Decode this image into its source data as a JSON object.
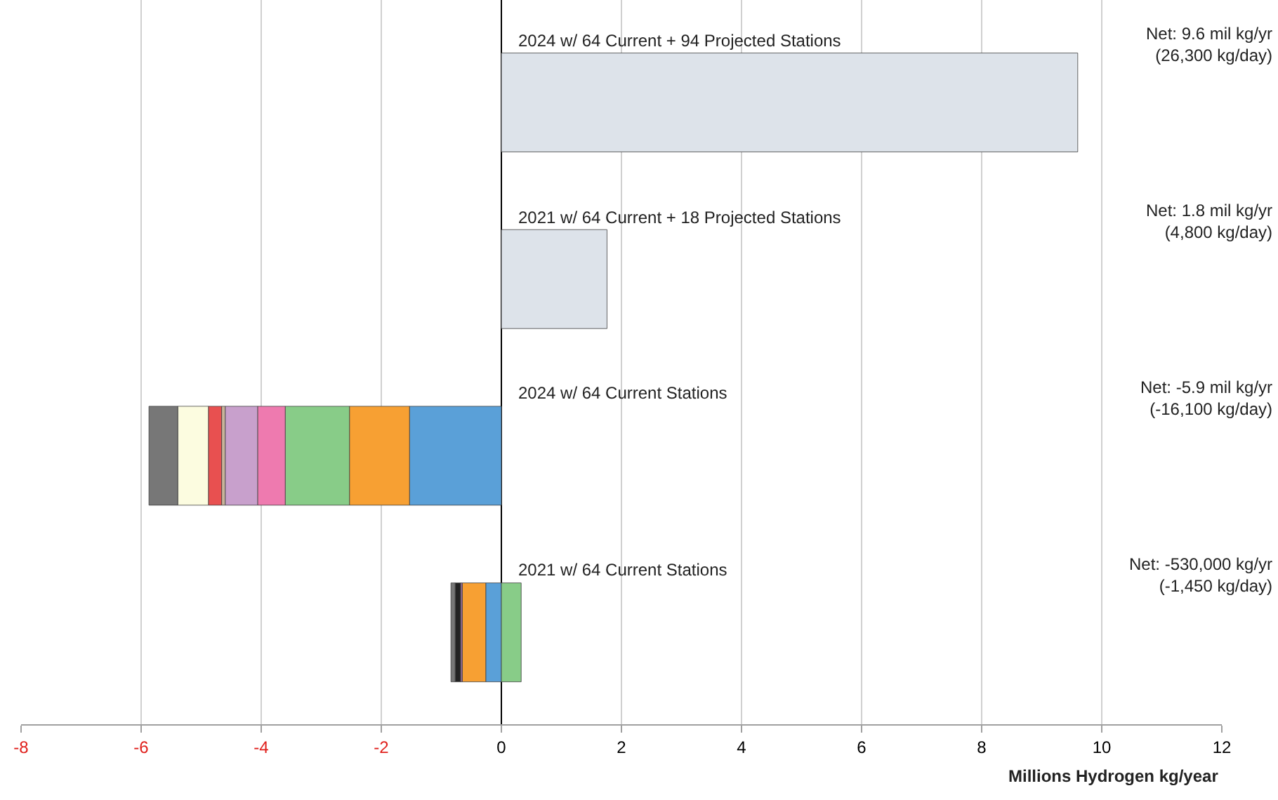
{
  "chart_data": {
    "type": "bar",
    "orientation": "horizontal",
    "stacked": true,
    "categories": [
      "2024 w/ 64 Current + 94 Projected Stations",
      "2021 w/ 64 Current + 18 Projected Stations",
      "2024 w/ 64 Current Stations",
      "2021 w/ 64 Current Stations"
    ],
    "series": [
      {
        "color": "#dde3ea",
        "values": [
          9.6,
          1.76,
          null,
          null
        ]
      },
      {
        "color": "#5aa0d8",
        "values": [
          null,
          null,
          -1.53,
          -0.26
        ]
      },
      {
        "color": "#f7a033",
        "values": [
          null,
          null,
          -1.0,
          -0.39
        ]
      },
      {
        "color": "#88cc88",
        "values": [
          null,
          null,
          -1.07,
          0.33
        ]
      },
      {
        "color": "#ee7aaf",
        "values": [
          null,
          null,
          -0.46,
          null
        ]
      },
      {
        "color": "#c8a0cc",
        "values": [
          null,
          null,
          -0.54,
          null
        ]
      },
      {
        "color": "#c8b49a",
        "values": [
          null,
          null,
          -0.06,
          null
        ]
      },
      {
        "color": "#e85050",
        "values": [
          null,
          null,
          -0.22,
          null
        ]
      },
      {
        "color": "#fcfce0",
        "values": [
          null,
          null,
          -0.51,
          null
        ]
      },
      {
        "color": "#a070a0",
        "values": [
          null,
          null,
          null,
          -0.03
        ]
      },
      {
        "color": "#222222",
        "values": [
          null,
          null,
          null,
          -0.09
        ]
      },
      {
        "color": "#777777",
        "values": [
          null,
          null,
          -0.48,
          -0.07
        ]
      }
    ],
    "xlim": [
      -8,
      12
    ],
    "xticks": [
      -8,
      -6,
      -4,
      -2,
      0,
      2,
      4,
      6,
      8,
      10,
      12
    ],
    "xlabel": "Millions Hydrogen kg/year",
    "annotations": [
      "Net: 9.6 mil kg/yr\n(26,300 kg/day)",
      "Net: 1.8 mil kg/yr\n(4,800 kg/day)",
      "Net: -5.9 mil kg/yr\n(-16,100 kg/day)",
      "Net: -530,000 kg/yr\n(-1,450 kg/day)"
    ],
    "grid": "x",
    "tick_labels": "x"
  }
}
